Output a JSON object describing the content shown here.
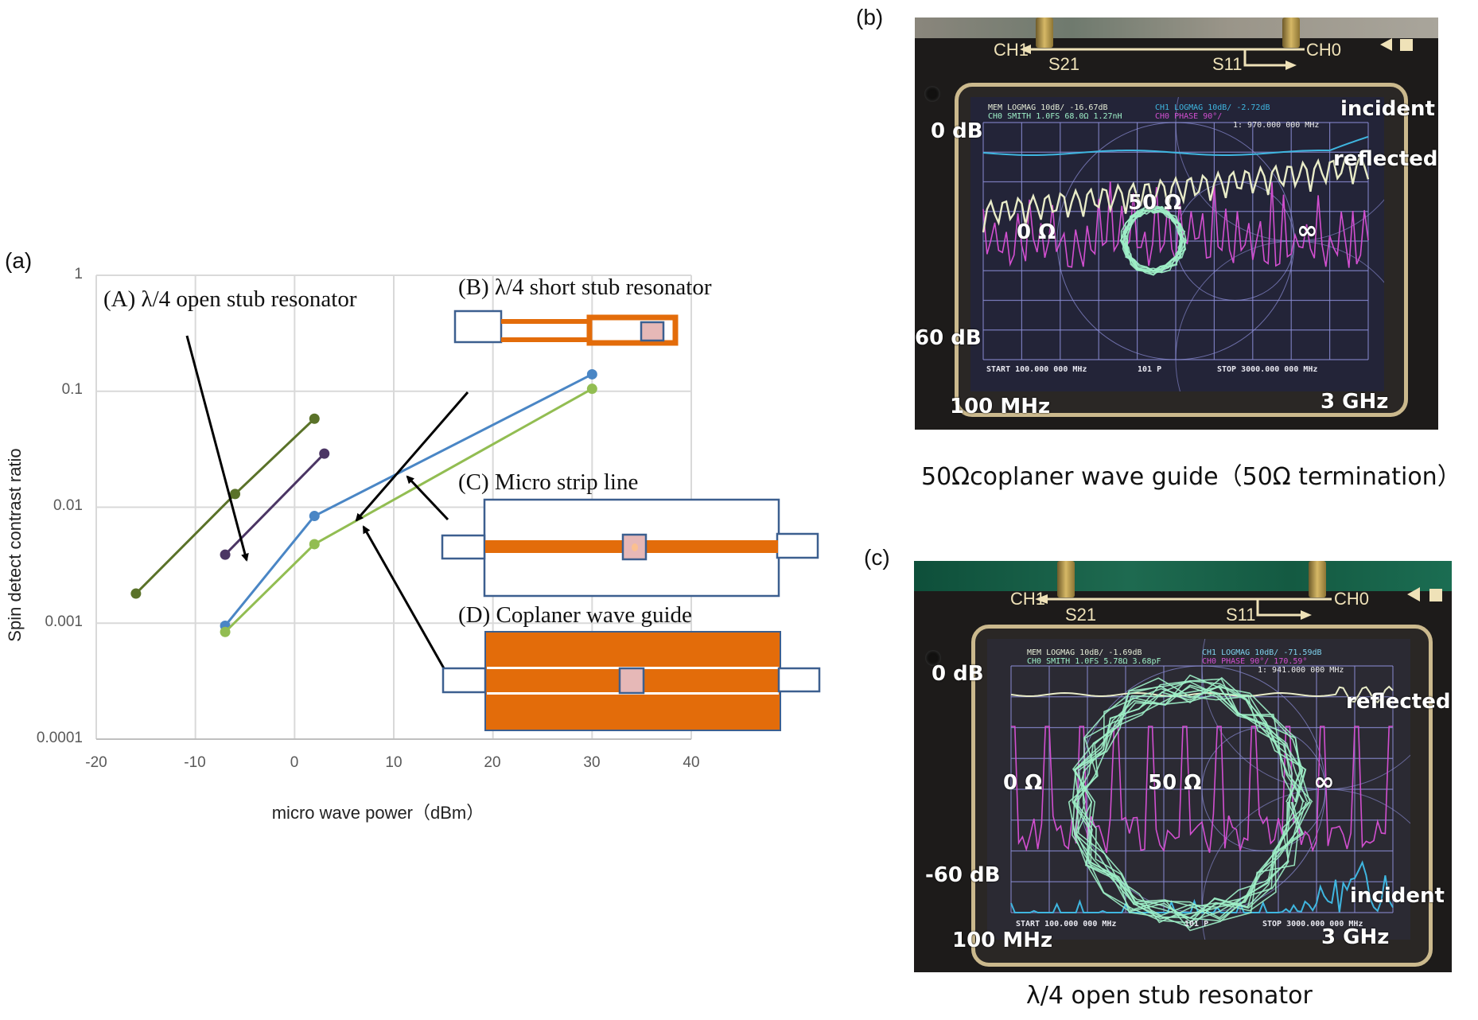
{
  "figure": {
    "panels": {
      "a": {
        "label": "(a)"
      },
      "b": {
        "label": "(b)"
      },
      "c": {
        "label": "(c)"
      }
    }
  },
  "chart_data": {
    "type": "line",
    "title": "",
    "xlabel": "micro wave power（dBm）",
    "ylabel": "Spin detect contrast ratio",
    "xscale": "linear",
    "yscale": "log",
    "xlim": [
      -20,
      40
    ],
    "ylim": [
      0.0001,
      1
    ],
    "x_ticks": [
      "-20",
      "-10",
      "0",
      "10",
      "20",
      "30",
      "40"
    ],
    "y_ticks": [
      "1",
      "0.1",
      "0.01",
      "0.001",
      "0.0001"
    ],
    "grid": true,
    "legend": "none (annotated with arrows and diagrams)",
    "series": [
      {
        "name": "(A) λ/4 open stub resonator",
        "color": "#5a7229",
        "x": [
          -16,
          -6,
          2
        ],
        "y": [
          0.0018,
          0.013,
          0.058
        ]
      },
      {
        "name": "(B) λ/4 short stub resonator",
        "color": "#4b3564",
        "x": [
          -7,
          3
        ],
        "y": [
          0.0039,
          0.029
        ]
      },
      {
        "name": "(C) Micro strip line",
        "color": "#4a86c5",
        "x": [
          -7,
          2,
          30
        ],
        "y": [
          0.00095,
          0.0084,
          0.14
        ]
      },
      {
        "name": "(D) Coplaner wave guide",
        "color": "#92bd52",
        "x": [
          -7,
          2,
          30
        ],
        "y": [
          0.00084,
          0.0048,
          0.105
        ]
      }
    ],
    "annotations": [
      {
        "id": "A",
        "text": "(A)  λ/4 open stub resonator"
      },
      {
        "id": "B",
        "text": "(B)  λ/4 short stub resonator"
      },
      {
        "id": "C",
        "text": "(C) Micro strip line"
      },
      {
        "id": "D",
        "text": "(D) Coplaner wave guide"
      }
    ]
  },
  "diagram_colors": {
    "conductor": "#e36c0a",
    "port_outline": "#3c5f8f",
    "sample": "#e6b8b7",
    "sample_dot": "#fbc08f"
  },
  "photo_b": {
    "silkscreen": {
      "ch1": "CH1",
      "ch0": "CH0",
      "s21": "S21",
      "s11": "S11"
    },
    "screen_header": {
      "line1_left": "MEM LOGMAG 10dB/ -16.67dB",
      "line2_left": "CH0 SMITH 1.0FS  68.0Ω 1.27nH",
      "line1_right": "CH1 LOGMAG 10dB/ -2.72dB",
      "line2_right": "CH0 PHASE 90°/",
      "marker": "1: 970.000 000 MHz"
    },
    "screen_footer": {
      "start": "START 100.000 000 MHz",
      "points": "101 P",
      "stop": "STOP 3000.000 000 MHz"
    },
    "annotations": {
      "top_db": "0 dB",
      "bottom_db": "60 dB",
      "incident": "incident",
      "reflected": "reflected",
      "zero_ohm": "0 Ω",
      "fifty_ohm": "50 Ω",
      "infinity": "∞",
      "start_freq": "100 MHz",
      "stop_freq": "3 GHz"
    },
    "caption": "50Ωcoplaner wave guide（50Ω termination）"
  },
  "photo_c": {
    "silkscreen": {
      "ch1": "CH1",
      "ch0": "CH0",
      "s21": "S21",
      "s11": "S11"
    },
    "screen_header": {
      "line1_left": "MEM LOGMAG 10dB/ -1.69dB",
      "line2_left": "CH0 SMITH 1.0FS  5.78Ω 3.68pF",
      "line1_right": "CH1 LOGMAG 10dB/ -71.59dB",
      "line2_right": "CH0 PHASE 90°/  170.59°",
      "marker": "1: 941.000 000 MHz"
    },
    "screen_footer": {
      "start": "START 100.000 000 MHz",
      "points": "101 P",
      "stop": "STOP 3000.000 000 MHz"
    },
    "annotations": {
      "top_db": "0 dB",
      "bottom_db": "-60 dB",
      "incident": "incident",
      "reflected": "reflected",
      "zero_ohm": "0 Ω",
      "fifty_ohm": "50 Ω",
      "infinity": "∞",
      "start_freq": "100 MHz",
      "stop_freq": "3 GHz"
    },
    "caption": "λ/4 open stub resonator"
  },
  "colors": {
    "grid": "#d9d9d9",
    "tick_text": "#595959",
    "trace_incident": "#3fb6e0",
    "trace_reflected": "#e9ecc8",
    "trace_phase": "#d24fd0",
    "trace_smith": "#9ef0c8",
    "screen_grid": "#8d8fd8"
  }
}
